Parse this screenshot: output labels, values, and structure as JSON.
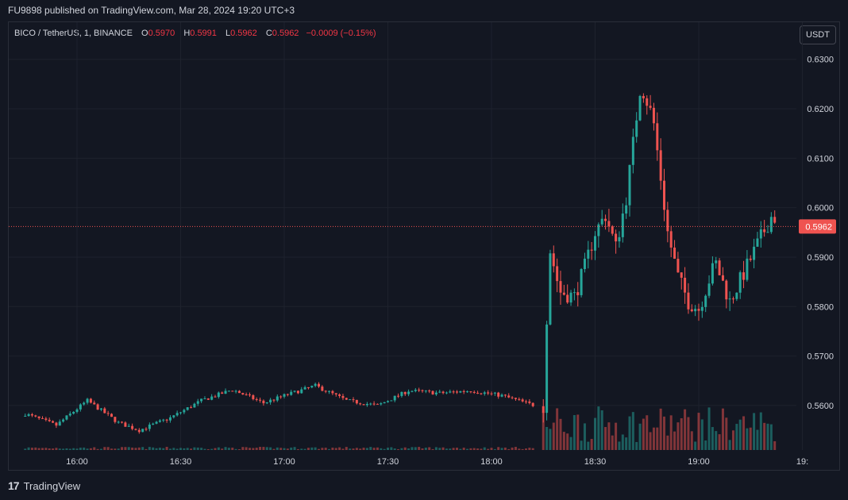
{
  "header": {
    "published": "FU9898 published on TradingView.com, Mar 28, 2024 19:20 UTC+3"
  },
  "legend": {
    "symbol": "BICO / TetherUS, 1, BINANCE",
    "open_label": "O",
    "open": "0.5970",
    "high_label": "H",
    "high": "0.5991",
    "low_label": "L",
    "low": "0.5962",
    "close_label": "C",
    "close": "0.5962",
    "change": "−0.0009 (−0.15%)"
  },
  "unit_button": "USDT",
  "footer": {
    "brand": "TradingView",
    "logo": "tradingview-logo-icon"
  },
  "colors": {
    "up": "#26a69a",
    "down": "#ef5350",
    "background": "#131722",
    "grid": "#1e222d"
  },
  "chart_data": {
    "type": "candlestick",
    "interval_minutes": 1,
    "y_ticks": [
      "0.5600",
      "0.5700",
      "0.5800",
      "0.5900",
      "0.6000",
      "0.6100",
      "0.6200",
      "0.6300"
    ],
    "ylim": [
      0.551,
      0.6375
    ],
    "x_ticks": [
      "16:00",
      "16:30",
      "17:00",
      "17:30",
      "18:00",
      "18:30",
      "19:00",
      "19:"
    ],
    "last_price": "0.5962",
    "segments": [
      {
        "start": "15:45",
        "end": "18:14",
        "from": 0.5583,
        "to": 0.5601,
        "path": [
          [
            15.75,
            0.5583
          ],
          [
            15.9,
            0.556
          ],
          [
            16.05,
            0.561
          ],
          [
            16.2,
            0.5565
          ],
          [
            16.3,
            0.555
          ],
          [
            16.45,
            0.5575
          ],
          [
            16.6,
            0.561
          ],
          [
            16.75,
            0.5632
          ],
          [
            16.9,
            0.5605
          ],
          [
            17.0,
            0.562
          ],
          [
            17.15,
            0.564
          ],
          [
            17.3,
            0.561
          ],
          [
            17.45,
            0.56
          ],
          [
            17.6,
            0.563
          ],
          [
            17.75,
            0.5625
          ],
          [
            17.9,
            0.563
          ],
          [
            18.05,
            0.562
          ],
          [
            18.2,
            0.5601
          ]
        ]
      },
      {
        "start": "18:15",
        "end": "19:20",
        "from": 0.5601,
        "to": 0.5962,
        "path": [
          [
            18.25,
            0.5601
          ],
          [
            18.28,
            0.592
          ],
          [
            18.33,
            0.583
          ],
          [
            18.4,
            0.582
          ],
          [
            18.45,
            0.588
          ],
          [
            18.5,
            0.595
          ],
          [
            18.55,
            0.5985
          ],
          [
            18.6,
            0.592
          ],
          [
            18.65,
            0.602
          ],
          [
            18.72,
            0.625
          ],
          [
            18.78,
            0.618
          ],
          [
            18.85,
            0.595
          ],
          [
            18.9,
            0.586
          ],
          [
            18.95,
            0.581
          ],
          [
            19.0,
            0.5795
          ],
          [
            19.08,
            0.589
          ],
          [
            19.15,
            0.581
          ],
          [
            19.22,
            0.587
          ],
          [
            19.3,
            0.594
          ],
          [
            19.36,
            0.599
          ],
          [
            19.38,
            0.5962
          ]
        ]
      }
    ]
  }
}
